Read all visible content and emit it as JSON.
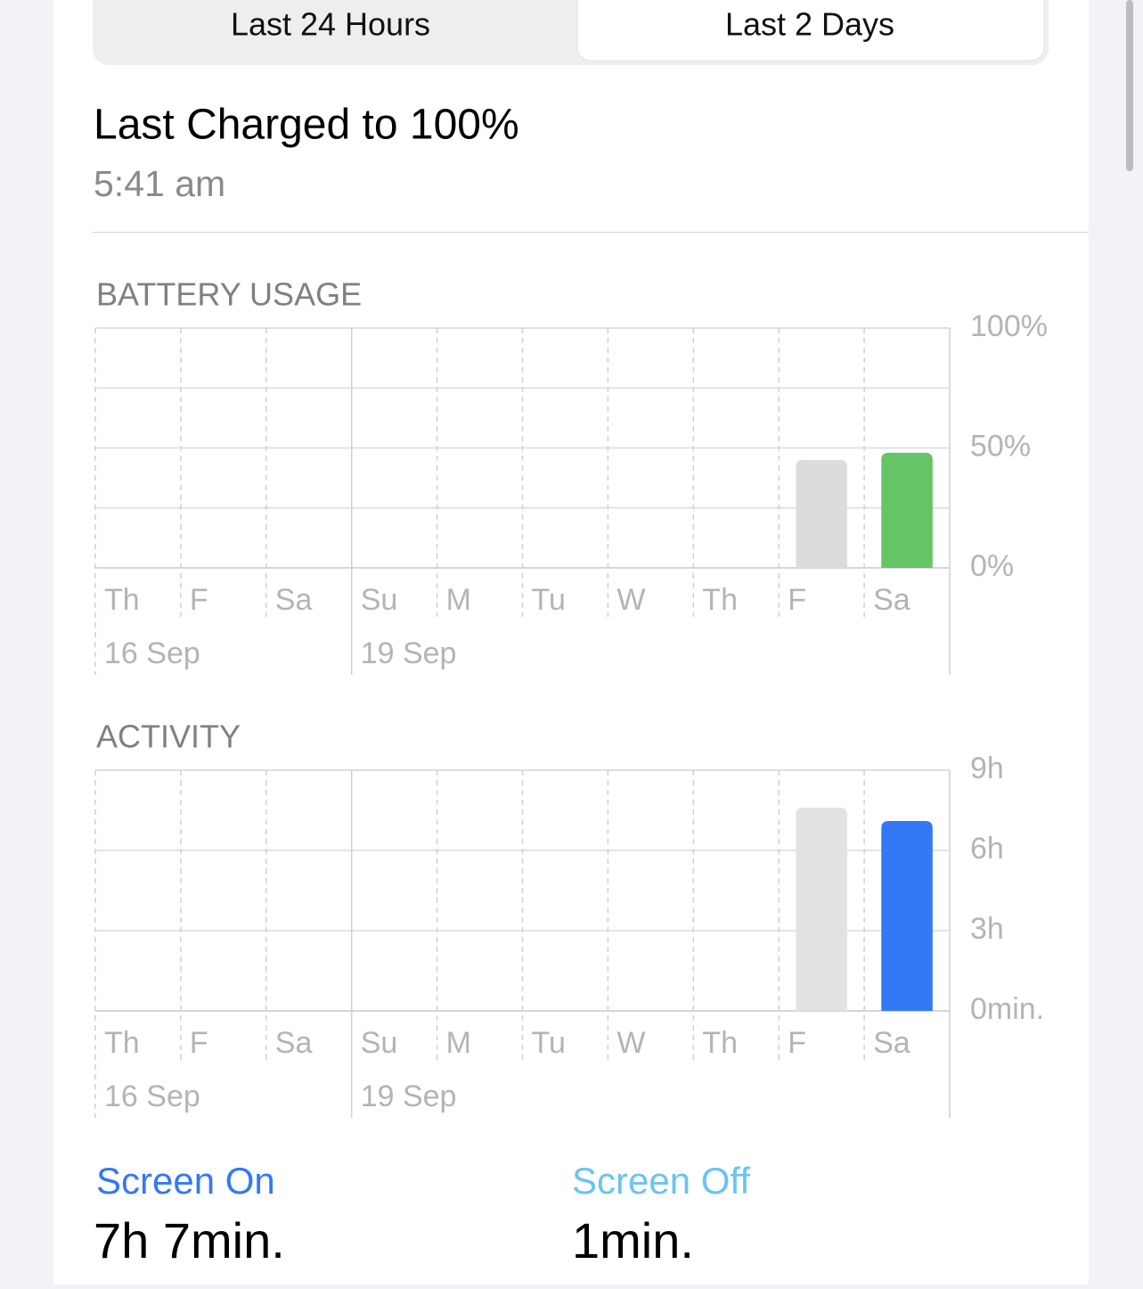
{
  "segmented_control": {
    "options": [
      "Last 24 Hours",
      "Last 2 Days"
    ],
    "selected": 1
  },
  "last_charged": {
    "title": "Last Charged to 100%",
    "time": "5:41 am"
  },
  "chart_data": [
    {
      "type": "bar",
      "title": "BATTERY USAGE",
      "categories": [
        "Th",
        "F",
        "Sa",
        "Su",
        "M",
        "Tu",
        "W",
        "Th",
        "F",
        "Sa"
      ],
      "date_labels": [
        "16 Sep",
        null,
        null,
        "19 Sep",
        null,
        null,
        null,
        null,
        null,
        null
      ],
      "values": [
        null,
        null,
        null,
        null,
        null,
        null,
        null,
        null,
        45,
        48
      ],
      "colors": [
        null,
        null,
        null,
        null,
        null,
        null,
        null,
        null,
        "#dcdcdc",
        "#65c466"
      ],
      "ylim": [
        0,
        100
      ],
      "yticks": [
        {
          "value": 0,
          "label": "0%"
        },
        {
          "value": 50,
          "label": "50%"
        },
        {
          "value": 100,
          "label": "100%"
        }
      ],
      "minor_gridlines": [
        25,
        75
      ],
      "grid": true
    },
    {
      "type": "bar",
      "title": "ACTIVITY",
      "categories": [
        "Th",
        "F",
        "Sa",
        "Su",
        "M",
        "Tu",
        "W",
        "Th",
        "F",
        "Sa"
      ],
      "date_labels": [
        "16 Sep",
        null,
        null,
        "19 Sep",
        null,
        null,
        null,
        null,
        null,
        null
      ],
      "values": [
        null,
        null,
        null,
        null,
        null,
        null,
        null,
        null,
        7.6,
        7.1
      ],
      "colors": [
        null,
        null,
        null,
        null,
        null,
        null,
        null,
        null,
        "#e2e2e2",
        "#3478f6"
      ],
      "ylim": [
        0,
        9
      ],
      "yticks": [
        {
          "value": 0,
          "label": "0min."
        },
        {
          "value": 3,
          "label": "3h"
        },
        {
          "value": 6,
          "label": "6h"
        },
        {
          "value": 9,
          "label": "9h"
        }
      ],
      "minor_gridlines": [],
      "grid": true
    }
  ],
  "stats": [
    {
      "label": "Screen On",
      "value": "7h 7min.",
      "color": "#3478f6"
    },
    {
      "label": "Screen Off",
      "value": "1min.",
      "color": "#6ac4f0"
    }
  ]
}
